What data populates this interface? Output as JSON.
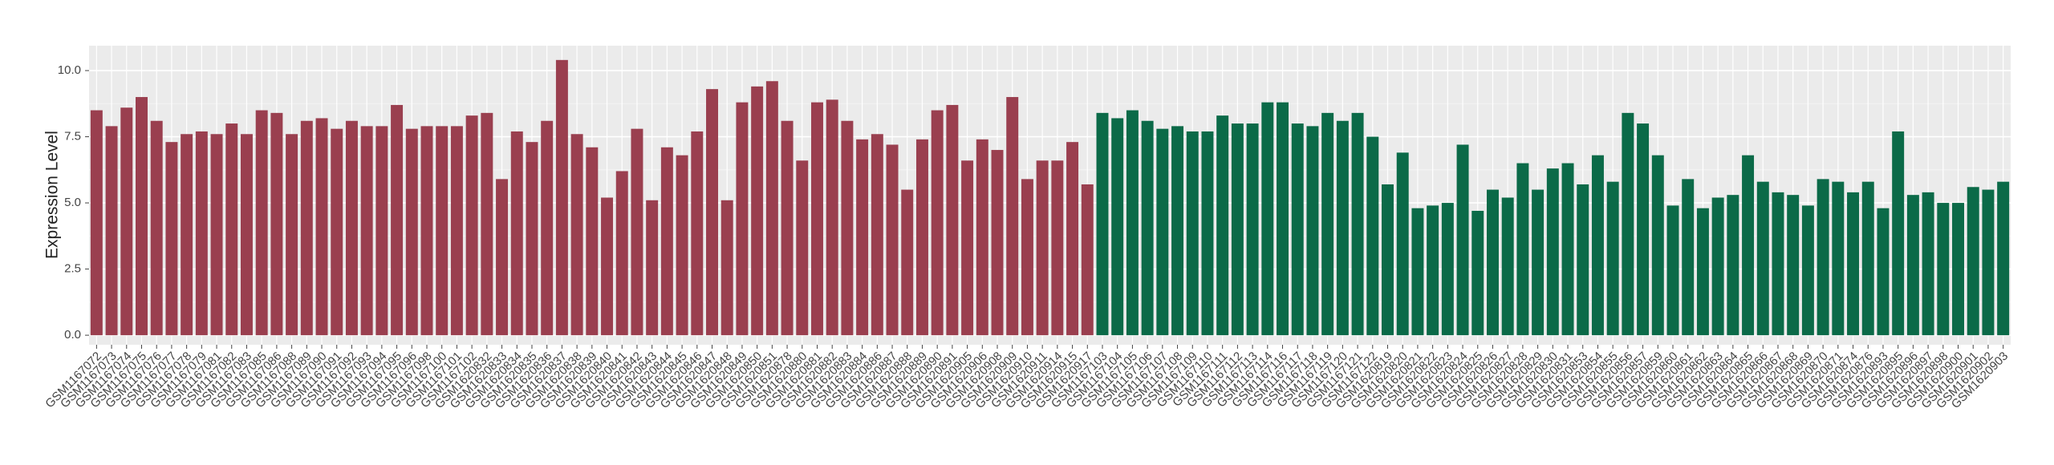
{
  "chart_data": {
    "type": "bar",
    "y_label": "Expression Level",
    "categories": [
      "GSM1167072",
      "GSM1167073",
      "GSM1167074",
      "GSM1167075",
      "GSM1167076",
      "GSM1167077",
      "GSM1167078",
      "GSM1167079",
      "GSM1167081",
      "GSM1167082",
      "GSM1167083",
      "GSM1167085",
      "GSM1167086",
      "GSM1167088",
      "GSM1167089",
      "GSM1167090",
      "GSM1167091",
      "GSM1167092",
      "GSM1167093",
      "GSM1167094",
      "GSM1167095",
      "GSM1167096",
      "GSM1167098",
      "GSM1167100",
      "GSM1167101",
      "GSM1167102",
      "GSM1620832",
      "GSM1620833",
      "GSM1620834",
      "GSM1620835",
      "GSM1620836",
      "GSM1620837",
      "GSM1620838",
      "GSM1620839",
      "GSM1620840",
      "GSM1620841",
      "GSM1620842",
      "GSM1620843",
      "GSM1620844",
      "GSM1620845",
      "GSM1620846",
      "GSM1620847",
      "GSM1620848",
      "GSM1620849",
      "GSM1620850",
      "GSM1620851",
      "GSM1620878",
      "GSM1620880",
      "GSM1620881",
      "GSM1620882",
      "GSM1620883",
      "GSM1620884",
      "GSM1620886",
      "GSM1620887",
      "GSM1620888",
      "GSM1620889",
      "GSM1620890",
      "GSM1620891",
      "GSM1620905",
      "GSM1620906",
      "GSM1620908",
      "GSM1620909",
      "GSM1620910",
      "GSM1620911",
      "GSM1620914",
      "GSM1620915",
      "GSM1620917",
      "GSM1167103",
      "GSM1167104",
      "GSM1167105",
      "GSM1167106",
      "GSM1167107",
      "GSM1167108",
      "GSM1167109",
      "GSM1167110",
      "GSM1167111",
      "GSM1167112",
      "GSM1167113",
      "GSM1167114",
      "GSM1167116",
      "GSM1167117",
      "GSM1167118",
      "GSM1167119",
      "GSM1167120",
      "GSM1167121",
      "GSM1167122",
      "GSM1620819",
      "GSM1620820",
      "GSM1620821",
      "GSM1620822",
      "GSM1620823",
      "GSM1620824",
      "GSM1620825",
      "GSM1620826",
      "GSM1620827",
      "GSM1620828",
      "GSM1620829",
      "GSM1620830",
      "GSM1620831",
      "GSM1620853",
      "GSM1620854",
      "GSM1620855",
      "GSM1620856",
      "GSM1620857",
      "GSM1620859",
      "GSM1620860",
      "GSM1620861",
      "GSM1620862",
      "GSM1620863",
      "GSM1620864",
      "GSM1620865",
      "GSM1620866",
      "GSM1620867",
      "GSM1620868",
      "GSM1620869",
      "GSM1620870",
      "GSM1620871",
      "GSM1620874",
      "GSM1620876",
      "GSM1620893",
      "GSM1620895",
      "GSM1620896",
      "GSM1620897",
      "GSM1620898",
      "GSM1620900",
      "GSM1620901",
      "GSM1620902",
      "GSM1620903"
    ],
    "series": [
      {
        "color": "#9a3f4f",
        "values": [
          8.5,
          7.9,
          8.6,
          9.0,
          8.1,
          7.3,
          7.6,
          7.7,
          7.6,
          8.0,
          7.6,
          8.5,
          8.4,
          7.6,
          8.1,
          8.2,
          7.8,
          8.1,
          7.9,
          7.9,
          8.7,
          7.8,
          7.9,
          7.9,
          7.9,
          8.3,
          8.4,
          5.9,
          7.7,
          7.3,
          8.1,
          10.4,
          7.6,
          7.1,
          5.2,
          6.2,
          7.8,
          5.1,
          7.1,
          6.8,
          7.7,
          9.3,
          5.1,
          8.8,
          9.4,
          9.6,
          8.1,
          6.6,
          8.8,
          8.9,
          8.1,
          7.4,
          7.6,
          7.2,
          5.5,
          7.4,
          8.5,
          8.7,
          6.6,
          7.4,
          7.0,
          9.0,
          5.9,
          6.6,
          6.6,
          7.3,
          5.7,
          null,
          null,
          null,
          null,
          null,
          null,
          null,
          null,
          null,
          null,
          null,
          null,
          null,
          null,
          null,
          null,
          null,
          null,
          null,
          null,
          null,
          null,
          null,
          null,
          null,
          null,
          null,
          null,
          null,
          null,
          null,
          null,
          null,
          null,
          null,
          null,
          null,
          null,
          null,
          null,
          null,
          null,
          null,
          null,
          null,
          null,
          null,
          null,
          null,
          null,
          null,
          null,
          null,
          null,
          null,
          null,
          null,
          null,
          null,
          null,
          null
        ]
      },
      {
        "color": "#0b6a48",
        "values": [
          null,
          null,
          null,
          null,
          null,
          null,
          null,
          null,
          null,
          null,
          null,
          null,
          null,
          null,
          null,
          null,
          null,
          null,
          null,
          null,
          null,
          null,
          null,
          null,
          null,
          null,
          null,
          null,
          null,
          null,
          null,
          null,
          null,
          null,
          null,
          null,
          null,
          null,
          null,
          null,
          null,
          null,
          null,
          null,
          null,
          null,
          null,
          null,
          null,
          null,
          null,
          null,
          null,
          null,
          null,
          null,
          null,
          null,
          null,
          null,
          null,
          null,
          null,
          null,
          null,
          null,
          null,
          8.4,
          8.2,
          8.5,
          8.1,
          7.8,
          7.9,
          7.7,
          7.7,
          8.3,
          8.0,
          8.0,
          8.8,
          8.8,
          8.0,
          7.9,
          8.4,
          8.1,
          8.4,
          7.5,
          5.7,
          6.9,
          4.8,
          4.9,
          5.0,
          7.2,
          4.7,
          5.5,
          5.2,
          6.5,
          5.5,
          6.3,
          6.5,
          5.7,
          6.8,
          5.8,
          8.4,
          8.0,
          6.8,
          4.9,
          5.9,
          4.8,
          5.2,
          5.3,
          6.8,
          5.8,
          5.4,
          5.3,
          4.9,
          5.9,
          5.8,
          5.4,
          5.8,
          4.8,
          7.7,
          5.3,
          5.4,
          5.0,
          5.0,
          5.6,
          5.5,
          5.8
        ]
      }
    ],
    "ylim": [
      -0.36,
      10.94
    ],
    "yticks": [
      {
        "value": 0,
        "label": "0.0"
      },
      2.5,
      {
        "value": 5,
        "label": "5.0"
      },
      7.5,
      {
        "value": 10,
        "label": "10.0"
      }
    ],
    "grid": true
  }
}
